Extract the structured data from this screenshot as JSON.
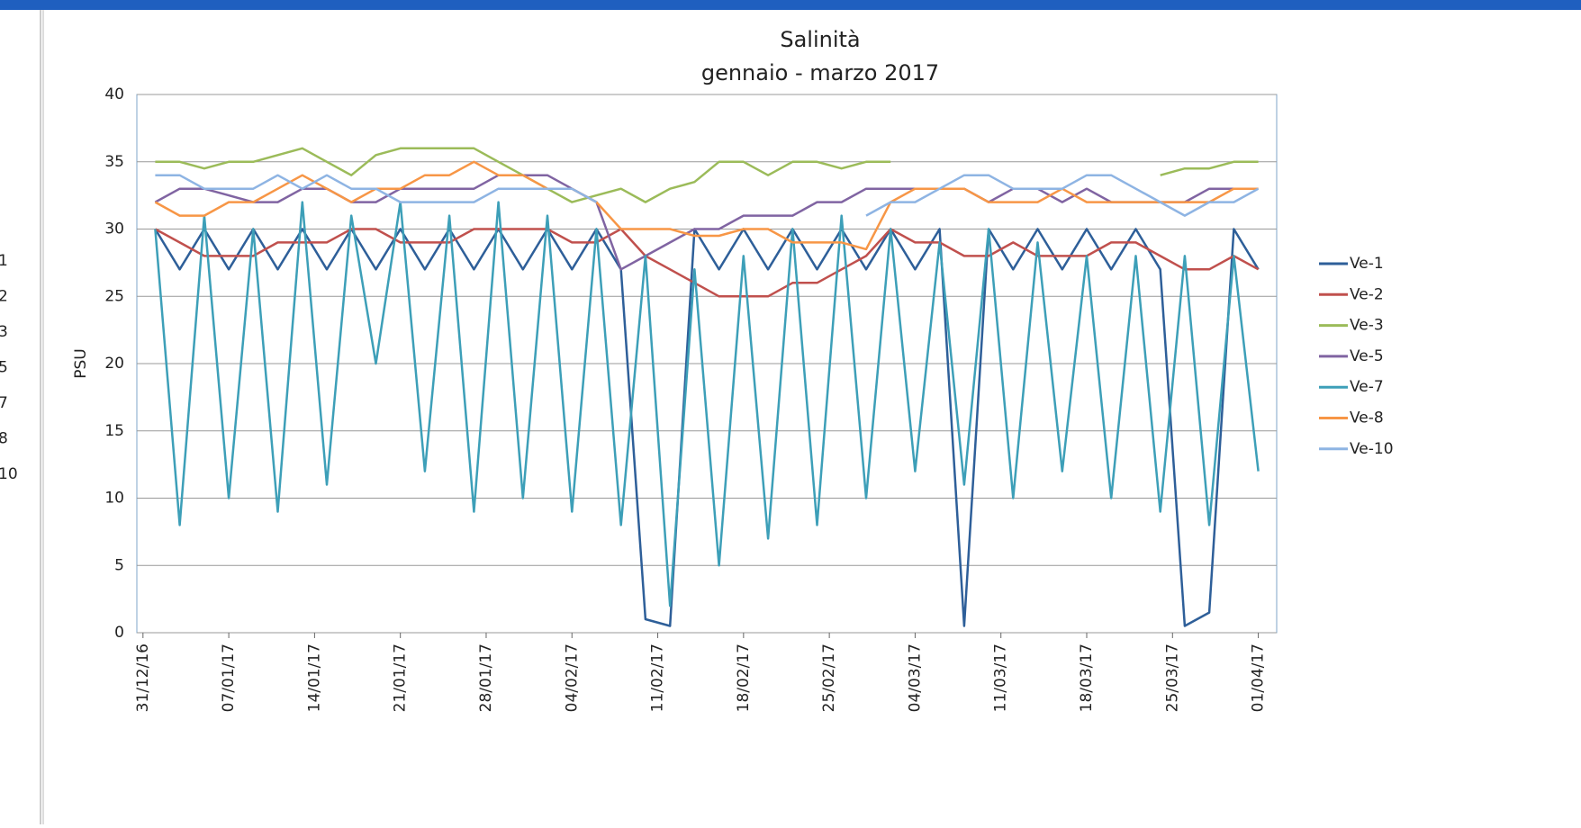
{
  "left_panel": {
    "labels": [
      "1",
      "2",
      "3",
      "5",
      "7",
      "8",
      "10"
    ]
  },
  "chart_data": {
    "type": "line",
    "title": "Salinità",
    "subtitle": "gennaio - marzo 2017",
    "y_label": "PSU",
    "x": [
      1,
      3,
      5,
      7,
      9,
      11,
      13,
      15,
      17,
      19,
      21,
      23,
      25,
      27,
      29,
      31,
      33,
      35,
      37,
      39,
      41,
      43,
      45,
      47,
      49,
      51,
      53,
      55,
      57,
      59,
      61,
      63,
      65,
      67,
      69,
      71,
      73,
      75,
      77,
      79,
      81,
      83,
      85,
      87,
      89,
      91
    ],
    "xlim": [
      -0.5,
      92.5
    ],
    "xticks": [
      {
        "value": 0,
        "label": "31/12/16"
      },
      {
        "value": 7,
        "label": "07/01/17"
      },
      {
        "value": 14,
        "label": "14/01/17"
      },
      {
        "value": 21,
        "label": "21/01/17"
      },
      {
        "value": 28,
        "label": "28/01/17"
      },
      {
        "value": 35,
        "label": "04/02/17"
      },
      {
        "value": 42,
        "label": "11/02/17"
      },
      {
        "value": 49,
        "label": "18/02/17"
      },
      {
        "value": 56,
        "label": "25/02/17"
      },
      {
        "value": 63,
        "label": "04/03/17"
      },
      {
        "value": 70,
        "label": "11/03/17"
      },
      {
        "value": 77,
        "label": "18/03/17"
      },
      {
        "value": 84,
        "label": "25/03/17"
      },
      {
        "value": 91,
        "label": "01/04/17"
      }
    ],
    "ylim": [
      0,
      40
    ],
    "yticks": [
      0,
      5,
      10,
      15,
      20,
      25,
      30,
      35,
      40
    ],
    "grid": true,
    "legend": "right",
    "series": [
      {
        "name": "Ve-1",
        "color": "#2e5f99",
        "values": [
          30,
          27,
          30,
          27,
          30,
          27,
          30,
          27,
          30,
          27,
          30,
          27,
          30,
          27,
          30,
          27,
          30,
          27,
          30,
          27,
          1,
          0.5,
          30,
          27,
          30,
          27,
          30,
          27,
          30,
          27,
          30,
          27,
          30,
          0.5,
          30,
          27,
          30,
          27,
          30,
          27,
          30,
          27,
          0.5,
          1.5,
          30,
          27
        ]
      },
      {
        "name": "Ve-2",
        "color": "#c0504d",
        "values": [
          30,
          29,
          28,
          28,
          28,
          29,
          29,
          29,
          30,
          30,
          29,
          29,
          29,
          30,
          30,
          30,
          30,
          29,
          29,
          30,
          28,
          27,
          26,
          25,
          25,
          25,
          26,
          26,
          27,
          28,
          30,
          29,
          29,
          28,
          28,
          29,
          28,
          28,
          28,
          29,
          29,
          28,
          27,
          27,
          28,
          27
        ]
      },
      {
        "name": "Ve-3",
        "color": "#9bbb59",
        "values": [
          35,
          35,
          34.5,
          35,
          35,
          35.5,
          36,
          35,
          34,
          35.5,
          36,
          36,
          36,
          36,
          35,
          34,
          33,
          32,
          32.5,
          33,
          32,
          33,
          33.5,
          35,
          35,
          34,
          35,
          35,
          34.5,
          35,
          35,
          null,
          null,
          null,
          null,
          null,
          null,
          null,
          null,
          null,
          null,
          34,
          34.5,
          34.5,
          35,
          35
        ]
      },
      {
        "name": "Ve-5",
        "color": "#8064a2",
        "values": [
          32,
          33,
          33,
          32.5,
          32,
          32,
          33,
          33,
          32,
          32,
          33,
          33,
          33,
          33,
          34,
          34,
          34,
          33,
          32,
          27,
          28,
          29,
          30,
          30,
          31,
          31,
          31,
          32,
          32,
          33,
          33,
          33,
          33,
          33,
          32,
          33,
          33,
          32,
          33,
          32,
          32,
          32,
          32,
          33,
          33,
          33
        ]
      },
      {
        "name": "Ve-7",
        "color": "#3d9fb8",
        "values": [
          30,
          8,
          31,
          10,
          30,
          9,
          32,
          11,
          31,
          20,
          32,
          12,
          31,
          9,
          32,
          10,
          31,
          9,
          30,
          8,
          28,
          2,
          27,
          5,
          28,
          7,
          30,
          8,
          31,
          10,
          30,
          12,
          29,
          11,
          30,
          10,
          29,
          12,
          28,
          10,
          28,
          9,
          28,
          8,
          28,
          12
        ]
      },
      {
        "name": "Ve-8",
        "color": "#f79646",
        "values": [
          32,
          31,
          31,
          32,
          32,
          33,
          34,
          33,
          32,
          33,
          33,
          34,
          34,
          35,
          34,
          34,
          33,
          33,
          32,
          30,
          30,
          30,
          29.5,
          29.5,
          30,
          30,
          29,
          29,
          29,
          28.5,
          32,
          33,
          33,
          33,
          32,
          32,
          32,
          33,
          32,
          32,
          32,
          32,
          32,
          32,
          33,
          33
        ]
      },
      {
        "name": "Ve-10",
        "color": "#8eb4e3",
        "values": [
          34,
          34,
          33,
          33,
          33,
          34,
          33,
          34,
          33,
          33,
          32,
          32,
          32,
          32,
          33,
          33,
          33,
          33,
          32,
          null,
          null,
          null,
          null,
          null,
          null,
          null,
          null,
          null,
          null,
          31,
          32,
          32,
          33,
          34,
          34,
          33,
          33,
          33,
          34,
          34,
          33,
          32,
          31,
          32,
          32,
          33
        ]
      }
    ]
  }
}
